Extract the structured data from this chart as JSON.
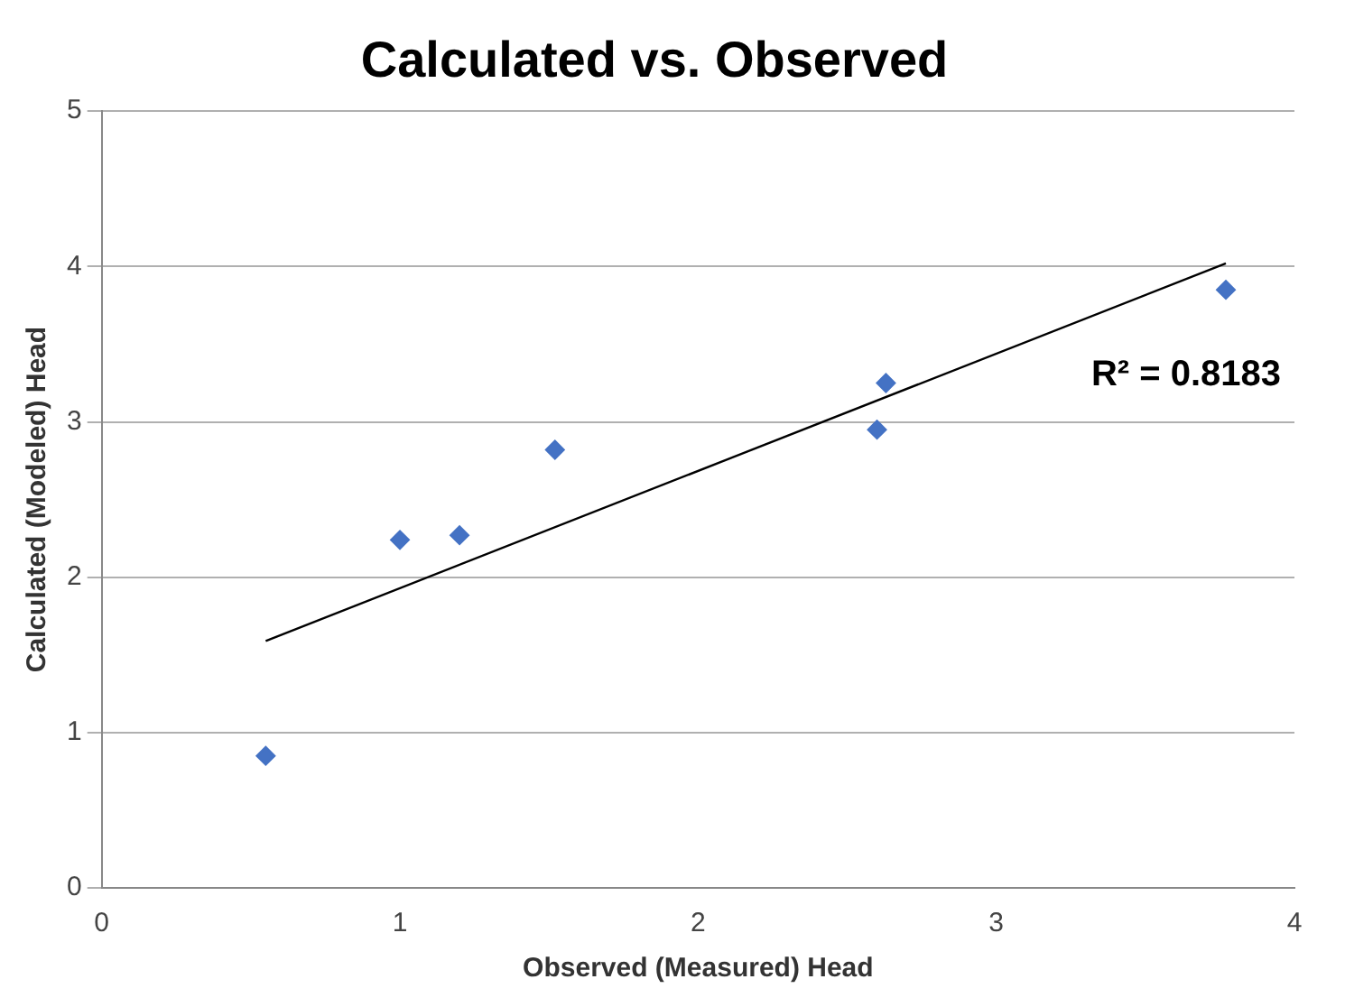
{
  "chart_data": {
    "type": "scatter",
    "title": "Calculated vs. Observed",
    "xlabel": "Observed (Measured) Head",
    "ylabel": "Calculated (Modeled) Head",
    "series": [
      {
        "color": "#4472c4",
        "marker": "diamond",
        "x": [
          0.55,
          1.0,
          1.2,
          1.52,
          2.6,
          2.63,
          3.77
        ],
        "values": [
          0.85,
          2.24,
          2.27,
          2.82,
          2.95,
          3.25,
          3.85
        ]
      },
      {
        "type": "line",
        "color": "#000000",
        "marker": "none",
        "x": [
          0.55,
          3.77
        ],
        "values": [
          1.59,
          4.02
        ]
      }
    ],
    "xlim": [
      0,
      4
    ],
    "xticks": [
      0,
      1,
      2,
      3,
      4
    ],
    "ylim": [
      0,
      5
    ],
    "yticks": [
      0,
      1,
      2,
      3,
      4,
      5
    ],
    "grid": "y",
    "legend": false,
    "annotations": [
      "R² = 0.8183"
    ]
  }
}
